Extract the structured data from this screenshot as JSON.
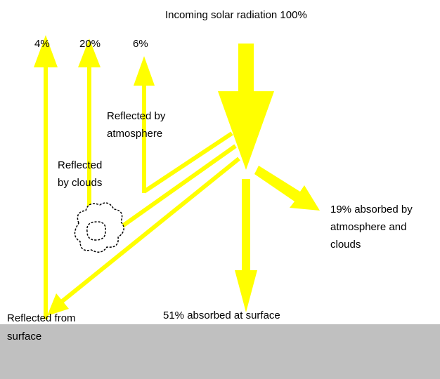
{
  "title": "Incoming solar radiation 100%",
  "reflected_percentages": [
    "4%",
    "20%",
    "6%"
  ],
  "labels": {
    "reflected_atmosphere": [
      "Reflected by",
      "atmosphere"
    ],
    "reflected_clouds": [
      "Reflected",
      "by clouds"
    ],
    "absorbed_atmosphere": [
      "19% absorbed by",
      "atmosphere and",
      "clouds"
    ],
    "reflected_surface": [
      "Reflected from",
      "surface"
    ],
    "absorbed_surface": "51% absorbed at surface"
  }
}
